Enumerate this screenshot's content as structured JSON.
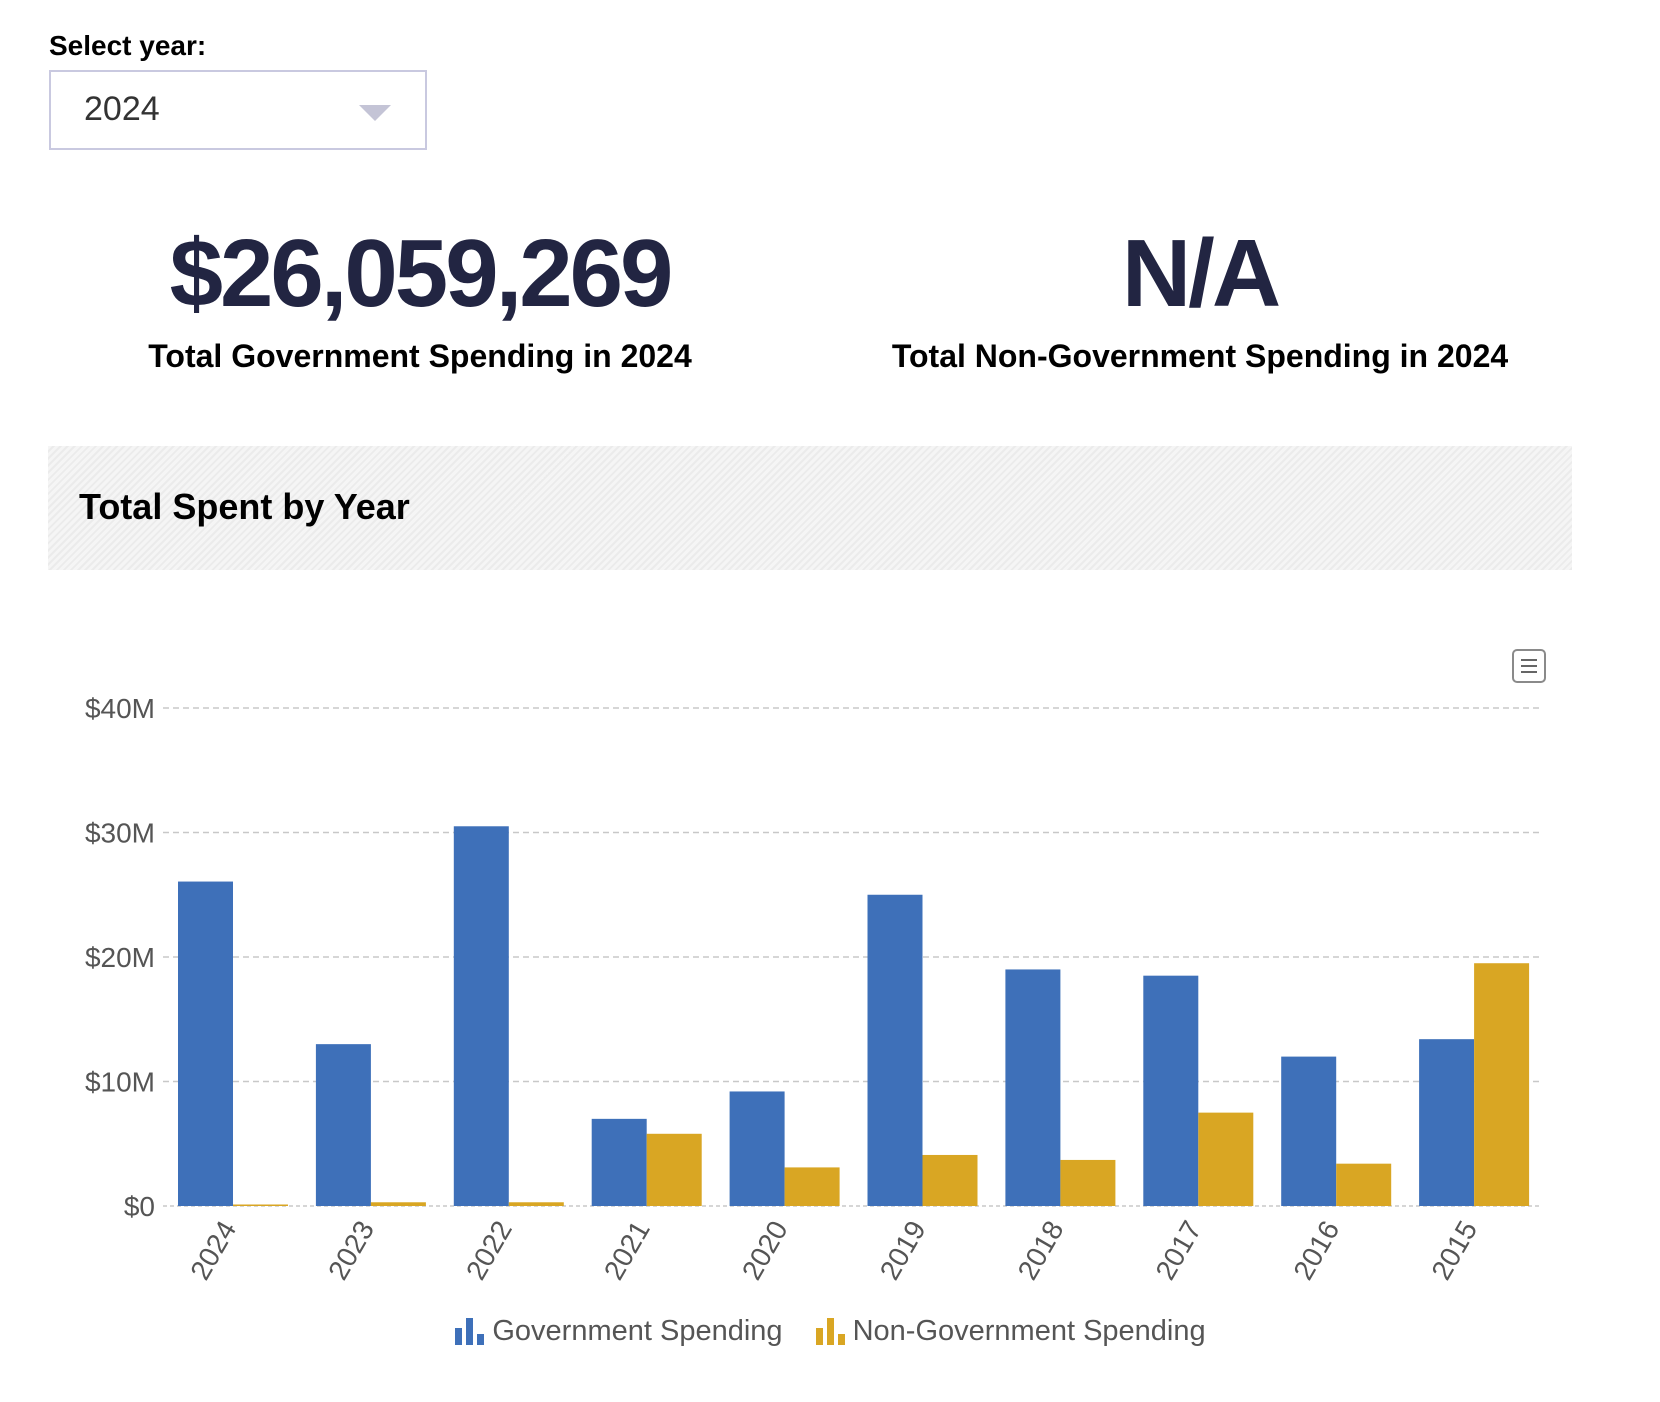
{
  "year_selector": {
    "label": "Select year:",
    "selected": "2024"
  },
  "kpis": {
    "government": {
      "value": "$26,059,269",
      "caption": "Total Government Spending in 2024"
    },
    "non_government": {
      "value": "N/A",
      "caption": "Total Non-Government Spending in 2024"
    }
  },
  "chart_section": {
    "title": "Total Spent by Year",
    "menu_icon": "hamburger-menu-icon"
  },
  "colors": {
    "government": "#3e70b9",
    "non_government": "#d9a623",
    "kpi_text": "#222542",
    "grid": "#c8c8c8",
    "axis_text": "#555555"
  },
  "chart_data": {
    "type": "bar",
    "title": "Total Spent by Year",
    "categories": [
      "2024",
      "2023",
      "2022",
      "2021",
      "2020",
      "2019",
      "2018",
      "2017",
      "2016",
      "2015"
    ],
    "series": [
      {
        "name": "Government Spending",
        "values": [
          26.06,
          13.0,
          30.5,
          7.0,
          9.2,
          25.0,
          19.0,
          18.5,
          12.0,
          13.4
        ]
      },
      {
        "name": "Non-Government Spending",
        "values": [
          0.05,
          0.3,
          0.3,
          5.8,
          3.1,
          4.1,
          3.7,
          7.5,
          3.4,
          19.5
        ]
      }
    ],
    "ylim": [
      0,
      40
    ],
    "y_ticks": [
      0,
      10,
      20,
      30,
      40
    ],
    "y_tick_labels": [
      "$0",
      "$10M",
      "$20M",
      "$30M",
      "$40M"
    ],
    "xlabel": "",
    "ylabel": "",
    "grid": true,
    "legend_position": "bottom-center"
  }
}
